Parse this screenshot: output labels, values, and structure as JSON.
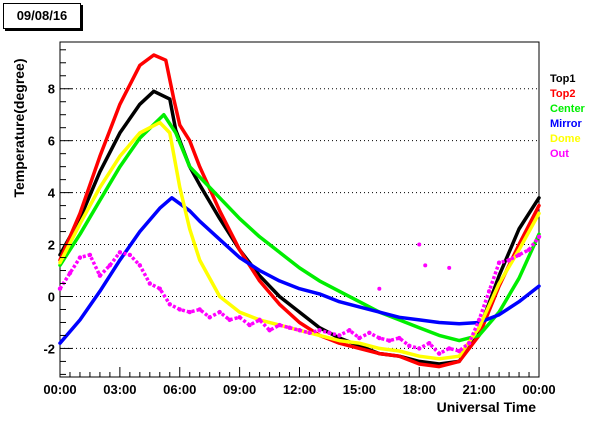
{
  "chart_data": {
    "type": "scatter",
    "title": "09/08/16",
    "xlabel": "Universal Time",
    "ylabel": "Temperature(degree)",
    "xlim": [
      0,
      24
    ],
    "ylim": [
      -3.1,
      9.8
    ],
    "x_ticks": [
      0,
      3,
      6,
      9,
      12,
      15,
      18,
      21,
      24
    ],
    "x_tick_labels": [
      "00:00",
      "03:00",
      "06:00",
      "09:00",
      "12:00",
      "15:00",
      "18:00",
      "21:00",
      "00:00"
    ],
    "y_ticks": [
      -2,
      0,
      2,
      4,
      6,
      8
    ],
    "y_tick_labels": [
      "-2",
      "0",
      "2",
      "4",
      "6",
      "8"
    ],
    "grid": "horizontal dotted",
    "legend_position": "right, outside plot",
    "series": [
      {
        "name": "Top1",
        "color": "#000000",
        "x": [
          0,
          1,
          2,
          3,
          4,
          4.7,
          5.5,
          5.8,
          6.5,
          7,
          8,
          9,
          10,
          11,
          12,
          13,
          14,
          15,
          16,
          17,
          18,
          19,
          20,
          21,
          22,
          23,
          24
        ],
        "y": [
          1.6,
          3.0,
          4.8,
          6.3,
          7.4,
          7.9,
          7.6,
          6.4,
          5.0,
          4.3,
          3.0,
          1.8,
          0.8,
          0.0,
          -0.6,
          -1.2,
          -1.6,
          -1.9,
          -2.2,
          -2.3,
          -2.5,
          -2.6,
          -2.5,
          -1.3,
          0.8,
          2.6,
          3.8
        ]
      },
      {
        "name": "Top2",
        "color": "#ff0000",
        "x": [
          0,
          1,
          2,
          3,
          4,
          4.7,
          5.3,
          5.7,
          6,
          6.5,
          7,
          8,
          9,
          10,
          11,
          12,
          13,
          14,
          15,
          16,
          17,
          18,
          19,
          20,
          21,
          22,
          23,
          24
        ],
        "y": [
          1.4,
          3.2,
          5.4,
          7.4,
          8.9,
          9.3,
          9.1,
          7.6,
          6.6,
          6.0,
          5.0,
          3.3,
          1.8,
          0.6,
          -0.3,
          -1.0,
          -1.5,
          -1.8,
          -2.0,
          -2.2,
          -2.3,
          -2.6,
          -2.7,
          -2.5,
          -1.5,
          0.4,
          2.0,
          3.5
        ]
      },
      {
        "name": "Center",
        "color": "#00ee00",
        "x": [
          0,
          1,
          2,
          3,
          4,
          5.2,
          5.8,
          6.5,
          7,
          8,
          9,
          10,
          11,
          12,
          13,
          14,
          15,
          16,
          17,
          18,
          19,
          20,
          21,
          22,
          23,
          24
        ],
        "y": [
          1.2,
          2.4,
          3.7,
          5.0,
          6.1,
          7.0,
          6.3,
          5.0,
          4.6,
          3.8,
          3.0,
          2.3,
          1.7,
          1.1,
          0.6,
          0.2,
          -0.2,
          -0.6,
          -0.9,
          -1.2,
          -1.5,
          -1.7,
          -1.5,
          -0.6,
          0.7,
          2.4
        ]
      },
      {
        "name": "Mirror",
        "color": "#0000ff",
        "x": [
          0,
          1,
          2,
          3,
          4,
          5,
          5.6,
          6.5,
          7,
          8,
          9,
          10,
          11,
          12,
          13,
          14,
          15,
          16,
          17,
          18,
          19,
          20,
          21,
          22,
          23,
          24
        ],
        "y": [
          -1.8,
          -0.9,
          0.2,
          1.4,
          2.5,
          3.4,
          3.8,
          3.3,
          2.9,
          2.2,
          1.5,
          1.0,
          0.6,
          0.3,
          0.1,
          -0.2,
          -0.4,
          -0.6,
          -0.8,
          -0.9,
          -1.0,
          -1.05,
          -1.0,
          -0.7,
          -0.2,
          0.4
        ]
      },
      {
        "name": "Dome",
        "color": "#ffff00",
        "x": [
          0,
          1,
          2,
          3,
          4,
          5,
          5.5,
          6,
          6.5,
          7,
          8,
          9,
          10,
          11,
          12,
          13,
          14,
          15,
          16,
          17,
          18,
          19,
          20,
          21,
          22,
          23,
          24
        ],
        "y": [
          1.3,
          2.8,
          4.2,
          5.4,
          6.3,
          6.7,
          6.3,
          4.2,
          2.6,
          1.4,
          0.0,
          -0.6,
          -0.9,
          -1.1,
          -1.3,
          -1.5,
          -1.7,
          -1.8,
          -2.0,
          -2.1,
          -2.3,
          -2.4,
          -2.3,
          -1.2,
          0.5,
          1.8,
          3.2
        ]
      },
      {
        "name": "Out",
        "color": "#ff00ff",
        "x": [
          0,
          0.5,
          1,
          1.5,
          2,
          2.5,
          3,
          3.5,
          4,
          4.5,
          5,
          5.5,
          6,
          6.5,
          7,
          7.5,
          8,
          8.5,
          9,
          9.5,
          10,
          10.5,
          11,
          11.5,
          12,
          12.5,
          13,
          13.5,
          14,
          14.5,
          15,
          15.5,
          16,
          16.5,
          17,
          17.5,
          18,
          18.5,
          19,
          19.5,
          20,
          20.5,
          21,
          21.5,
          22,
          22.5,
          23,
          23.5,
          24
        ],
        "y": [
          0.3,
          0.9,
          1.5,
          1.6,
          0.8,
          1.2,
          1.7,
          1.6,
          1.2,
          0.5,
          0.3,
          -0.3,
          -0.5,
          -0.6,
          -0.5,
          -0.8,
          -0.6,
          -0.9,
          -0.8,
          -1.1,
          -0.9,
          -1.3,
          -1.1,
          -1.2,
          -1.3,
          -1.4,
          -1.3,
          -1.4,
          -1.5,
          -1.3,
          -1.6,
          -1.4,
          -1.6,
          -1.7,
          -1.6,
          -1.9,
          -2.0,
          -1.8,
          -2.2,
          -2.0,
          -2.1,
          -1.8,
          -0.9,
          0.2,
          1.3,
          1.4,
          1.6,
          1.8,
          2.3
        ]
      }
    ],
    "outliers": {
      "series": "Out",
      "x": [
        16,
        18,
        18.3,
        19.5
      ],
      "y": [
        0.3,
        2.0,
        1.2,
        1.1
      ]
    }
  }
}
